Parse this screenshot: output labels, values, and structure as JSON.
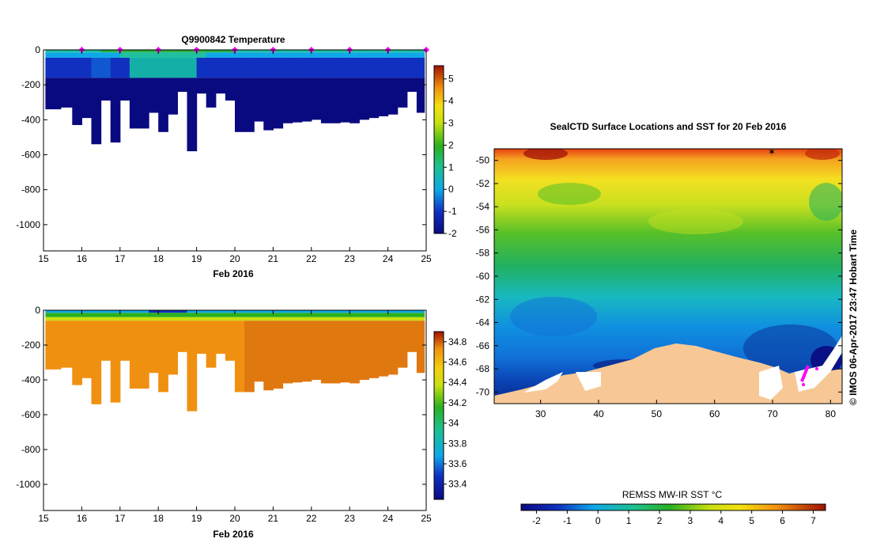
{
  "chart_data": [
    {
      "type": "heatmap",
      "title": "Q9900842  Temperature",
      "xlabel": "Feb 2016",
      "ylabel": "",
      "x_ticks": [
        "15",
        "16",
        "17",
        "18",
        "19",
        "20",
        "21",
        "22",
        "23",
        "24",
        "25"
      ],
      "y_ticks": [
        "0",
        "-200",
        "-400",
        "-600",
        "-800",
        "-1000"
      ],
      "xlim": [
        15,
        25
      ],
      "ylim": [
        -1150,
        0
      ],
      "colorbar_ticks": [
        "5",
        "4",
        "3",
        "2",
        "1",
        "0",
        "-1",
        "-2"
      ],
      "colorbar_range": [
        -2,
        5.6
      ],
      "profile_days": [
        15.3,
        15.6,
        15.9,
        16.1,
        16.4,
        16.6,
        16.9,
        17.1,
        17.4,
        17.6,
        17.9,
        18.1,
        18.4,
        18.6,
        18.9,
        19.1,
        19.4,
        19.6,
        19.9,
        20.1,
        20.4,
        20.6,
        20.9,
        21.1,
        21.4,
        21.6,
        21.9,
        22.1,
        22.4,
        22.6,
        22.9,
        23.1,
        23.4,
        23.6,
        23.9,
        24.1,
        24.4,
        24.6,
        24.9
      ],
      "profile_max_depth": [
        340,
        330,
        430,
        390,
        540,
        290,
        530,
        290,
        450,
        450,
        360,
        470,
        370,
        240,
        580,
        250,
        330,
        250,
        290,
        470,
        470,
        410,
        460,
        450,
        420,
        415,
        410,
        400,
        420,
        420,
        415,
        420,
        400,
        390,
        380,
        370,
        330,
        240,
        360
      ],
      "surface_markers": [
        16,
        17,
        18,
        19,
        20,
        21,
        22,
        23,
        24,
        25
      ]
    },
    {
      "type": "heatmap",
      "title": "",
      "xlabel": "Feb 2016",
      "ylabel": "",
      "x_ticks": [
        "15",
        "16",
        "17",
        "18",
        "19",
        "20",
        "21",
        "22",
        "23",
        "24",
        "25"
      ],
      "y_ticks": [
        "0",
        "-200",
        "-400",
        "-600",
        "-800",
        "-1000"
      ],
      "xlim": [
        15,
        25
      ],
      "ylim": [
        -1150,
        0
      ],
      "colorbar_ticks": [
        "34.8",
        "34.6",
        "34.4",
        "34.2",
        "34",
        "33.8",
        "33.6",
        "33.4"
      ],
      "colorbar_range": [
        33.25,
        34.9
      ],
      "profile_days": [
        15.3,
        15.6,
        15.9,
        16.1,
        16.4,
        16.6,
        16.9,
        17.1,
        17.4,
        17.6,
        17.9,
        18.1,
        18.4,
        18.6,
        18.9,
        19.1,
        19.4,
        19.6,
        19.9,
        20.1,
        20.4,
        20.6,
        20.9,
        21.1,
        21.4,
        21.6,
        21.9,
        22.1,
        22.4,
        22.6,
        22.9,
        23.1,
        23.4,
        23.6,
        23.9,
        24.1,
        24.4,
        24.6,
        24.9
      ],
      "profile_max_depth": [
        340,
        330,
        430,
        390,
        540,
        290,
        530,
        290,
        450,
        450,
        360,
        470,
        370,
        240,
        580,
        250,
        330,
        250,
        290,
        470,
        470,
        410,
        460,
        450,
        420,
        415,
        410,
        400,
        420,
        420,
        415,
        420,
        400,
        390,
        380,
        370,
        330,
        240,
        360
      ]
    },
    {
      "type": "heatmap",
      "title": "SealCTD Surface Locations and SST for 20 Feb 2016",
      "xlabel": "",
      "ylabel": "",
      "x_ticks": [
        "30",
        "40",
        "50",
        "60",
        "70",
        "80"
      ],
      "y_ticks": [
        "-50",
        "-52",
        "-54",
        "-56",
        "-58",
        "-60",
        "-62",
        "-64",
        "-66",
        "-68",
        "-70"
      ],
      "xlim": [
        22,
        82
      ],
      "ylim": [
        -71,
        -49
      ],
      "colorbar_label": "REMSS MW-IR SST °C",
      "colorbar_ticks": [
        "-2",
        "-1",
        "0",
        "1",
        "2",
        "3",
        "4",
        "5",
        "6",
        "7"
      ],
      "colorbar_range": [
        -2.5,
        7.4
      ],
      "side_label": "©  IMOS 06-Apr-2017 23:47 Hobart Time"
    }
  ]
}
